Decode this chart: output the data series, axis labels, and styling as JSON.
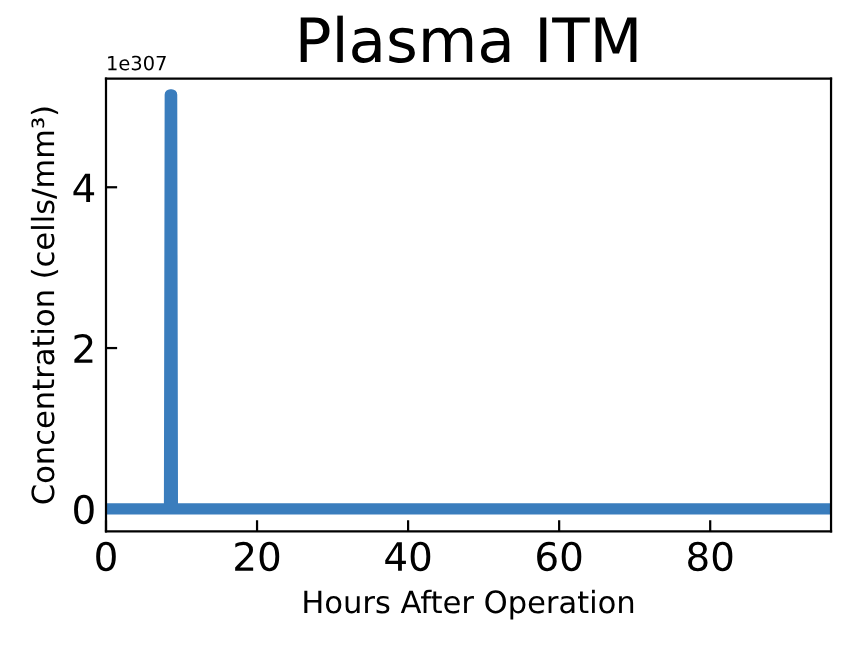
{
  "chart_data": {
    "type": "line",
    "title": "Plasma ITM",
    "xlabel": "Hours After Operation",
    "ylabel": "Concentration (cells/mm³)",
    "series": [
      {
        "color": "#3a7dbd",
        "x": [
          0,
          8.4,
          8.5,
          8.7,
          8.8,
          96
        ],
        "values": [
          0,
          0,
          5.15,
          5.15,
          0,
          0
        ]
      }
    ],
    "xlim": [
      0,
      96
    ],
    "xticks": [
      0,
      20,
      40,
      60,
      80
    ],
    "ylim": [
      -0.28,
      5.35
    ],
    "yticks": [
      0,
      2,
      4
    ],
    "annotations": [
      "1e307"
    ],
    "grid": false,
    "legend": false,
    "marker": "none",
    "line_style": "solid"
  }
}
